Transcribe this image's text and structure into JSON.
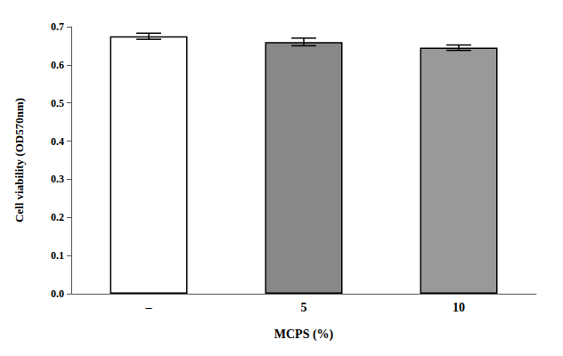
{
  "chart_data": {
    "type": "bar",
    "categories": [
      "–",
      "5",
      "10"
    ],
    "values": [
      0.675,
      0.66,
      0.645
    ],
    "errors": [
      0.008,
      0.01,
      0.007
    ],
    "colors": [
      "#ffffff",
      "#888888",
      "#999999"
    ],
    "xlabel": "MCPS (%)",
    "ylabel": "Cell viability (OD570nm)",
    "ylim": [
      0.0,
      0.7
    ],
    "yticks": [
      {
        "value": 0.0,
        "label": "0.0"
      },
      0.1,
      0.2,
      0.3,
      0.4,
      0.5,
      0.6,
      0.7
    ],
    "grid": false
  }
}
